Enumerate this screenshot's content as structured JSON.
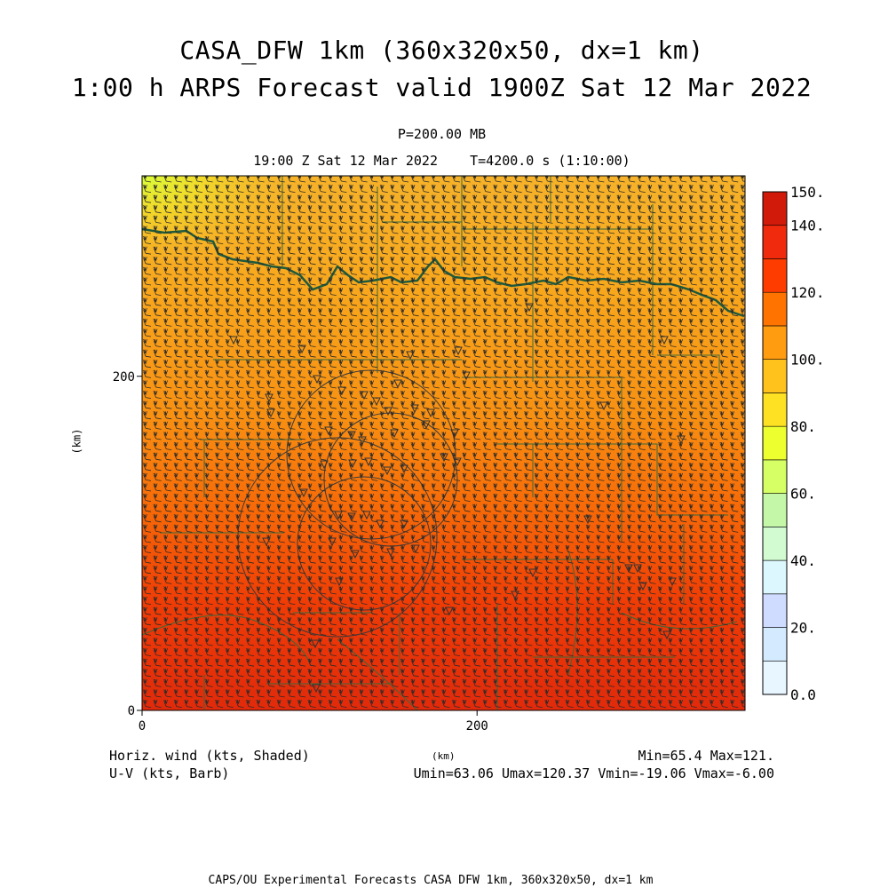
{
  "header": {
    "title_line1": "CASA_DFW 1km (360x320x50, dx=1 km)",
    "title_line2": "1:00 h ARPS Forecast valid 1900Z Sat 12 Mar 2022",
    "level": "P=200.00 MB",
    "valid_time": "19:00 Z Sat 12 Mar 2022    T=4200.0 s (1:10:00)"
  },
  "footer": {
    "field_label": "Horiz. wind (kts, Shaded)",
    "vector_label": "U-V (kts, Barb)",
    "xunit": "(km)",
    "minmax": "Min=65.4 Max=121.",
    "uv_stats": "Umin=63.06 Umax=120.37 Vmin=-19.06 Vmax=-6.00",
    "credit": "CAPS/OU Experimental Forecasts  CASA DFW 1km, 360x320x50, dx=1 km"
  },
  "colors": {
    "boundary": "#1e5a3c",
    "county": "#3a6a3a",
    "barb": "#2b2b2b"
  },
  "chart_data": {
    "type": "heatmap",
    "field": "Horizontal wind speed",
    "units": "kts",
    "ylabel": "(km)",
    "xlabel": "(km)",
    "xlim": [
      0,
      360
    ],
    "ylim": [
      0,
      320
    ],
    "x_ticks": [
      {
        "value": 0,
        "label": "0"
      },
      {
        "value": 200,
        "label": "200"
      }
    ],
    "y_ticks": [
      {
        "value": 0,
        "label": "0"
      },
      {
        "value": 200,
        "label": "200"
      }
    ],
    "min": 65.4,
    "max": 121,
    "u_range": [
      63.06,
      120.37
    ],
    "v_range": [
      -19.06,
      -6.0
    ],
    "colorbar": {
      "levels": [
        0,
        10,
        20,
        30,
        40,
        50,
        60,
        70,
        80,
        90,
        100,
        110,
        120,
        130,
        140,
        150
      ],
      "colors": [
        "#e8f6ff",
        "#d4eaff",
        "#cfdcff",
        "#ddf7ff",
        "#d2fbd2",
        "#c4f7a8",
        "#d6ff66",
        "#eeff30",
        "#ffe124",
        "#ffc21c",
        "#ff9c10",
        "#ff7300",
        "#ff3c00",
        "#f02a0c",
        "#d21a0a"
      ],
      "labels": [
        {
          "value": 0,
          "label": "0.0"
        },
        {
          "value": 20,
          "label": "20."
        },
        {
          "value": 40,
          "label": "40."
        },
        {
          "value": 60,
          "label": "60."
        },
        {
          "value": 80,
          "label": "80."
        },
        {
          "value": 100,
          "label": "100."
        },
        {
          "value": 120,
          "label": "120."
        },
        {
          "value": 140,
          "label": "140."
        },
        {
          "value": 150,
          "label": "150."
        }
      ]
    }
  }
}
